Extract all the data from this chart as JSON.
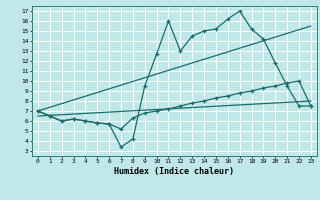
{
  "xlabel": "Humidex (Indice chaleur)",
  "xlim": [
    -0.5,
    23.5
  ],
  "ylim": [
    2.5,
    17.5
  ],
  "xticks": [
    0,
    1,
    2,
    3,
    4,
    5,
    6,
    7,
    8,
    9,
    10,
    11,
    12,
    13,
    14,
    15,
    16,
    17,
    18,
    19,
    20,
    21,
    22,
    23
  ],
  "yticks": [
    3,
    4,
    5,
    6,
    7,
    8,
    9,
    10,
    11,
    12,
    13,
    14,
    15,
    16,
    17
  ],
  "line_color": "#1a6b6b",
  "bg_color": "#c0e8e8",
  "grid_color": "#ffffff",
  "line1_x": [
    0,
    1,
    2,
    3,
    4,
    5,
    6,
    7,
    8,
    9,
    10,
    11,
    12,
    13,
    14,
    15,
    16,
    17,
    18,
    19,
    20,
    21,
    22,
    23
  ],
  "line1_y": [
    7.0,
    6.5,
    6.0,
    6.2,
    6.0,
    5.8,
    5.7,
    3.4,
    4.2,
    9.5,
    12.7,
    16.0,
    13.0,
    14.5,
    15.0,
    15.2,
    16.2,
    17.0,
    15.2,
    14.2,
    11.8,
    9.5,
    7.5,
    7.5
  ],
  "line2_x": [
    0,
    1,
    2,
    3,
    4,
    5,
    6,
    7,
    8,
    9,
    10,
    11,
    12,
    13,
    14,
    15,
    16,
    17,
    18,
    19,
    20,
    21,
    22,
    23
  ],
  "line2_y": [
    7.0,
    6.5,
    6.0,
    6.2,
    6.0,
    5.8,
    5.7,
    5.2,
    6.3,
    6.8,
    7.0,
    7.2,
    7.5,
    7.8,
    8.0,
    8.3,
    8.5,
    8.8,
    9.0,
    9.3,
    9.5,
    9.8,
    10.0,
    7.5
  ],
  "regline1_x": [
    0,
    23
  ],
  "regline1_y": [
    6.5,
    8.0
  ],
  "regline2_x": [
    0,
    23
  ],
  "regline2_y": [
    7.0,
    15.5
  ]
}
